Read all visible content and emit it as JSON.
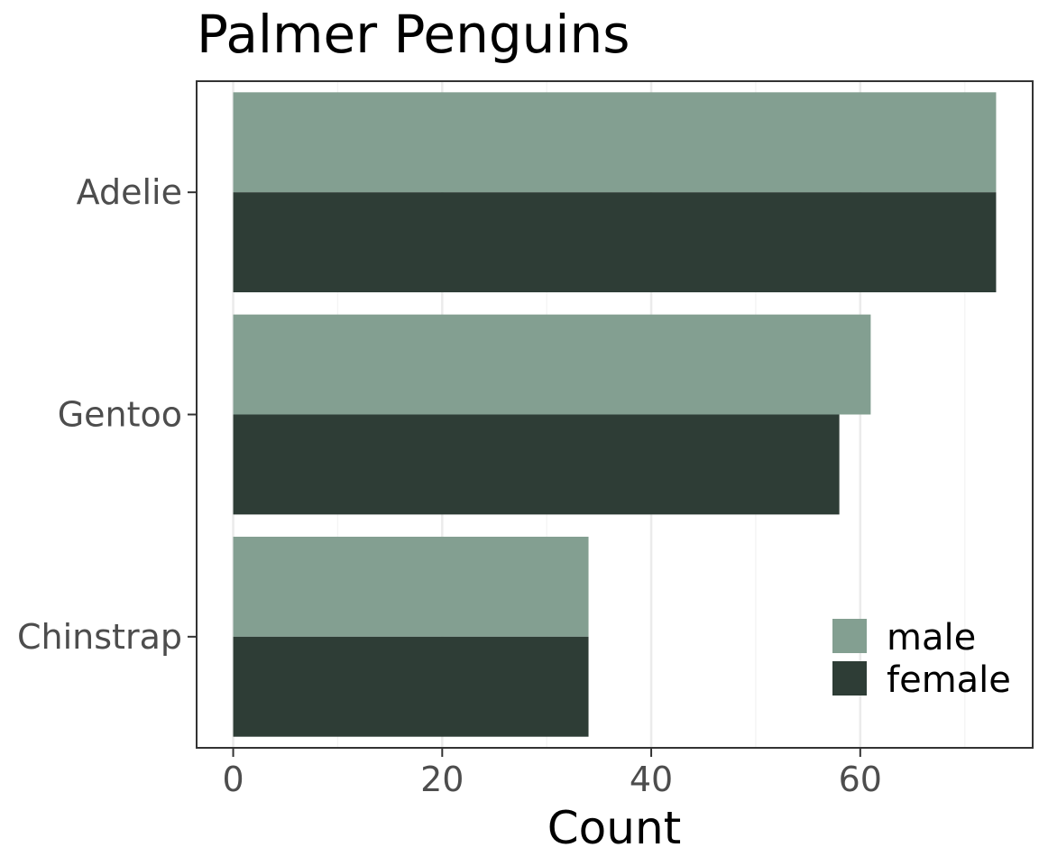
{
  "chart_data": {
    "type": "bar",
    "orientation": "horizontal",
    "title": "Palmer Penguins",
    "xlabel": "Count",
    "ylabel": "",
    "categories": [
      "Adelie",
      "Gentoo",
      "Chinstrap"
    ],
    "series": [
      {
        "name": "male",
        "color": "#839f91",
        "values": [
          73,
          61,
          34
        ]
      },
      {
        "name": "female",
        "color": "#2e3d36",
        "values": [
          73,
          58,
          34
        ]
      }
    ],
    "xlim": [
      -3.5,
      76.5
    ],
    "xticks": [
      0,
      20,
      40,
      60
    ],
    "grid": true,
    "legend_position": "bottom-right"
  }
}
